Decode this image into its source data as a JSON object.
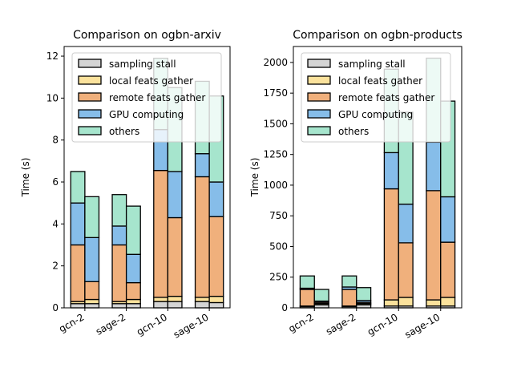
{
  "chart_data": [
    {
      "type": "bar",
      "stacked": true,
      "title": "Comparison on ogbn-arxiv",
      "ylabel": "Time (s)",
      "categories": [
        "gcn-2",
        "sage-2",
        "gcn-10",
        "sage-10"
      ],
      "ylim": [
        0,
        12.46
      ],
      "yticks": [
        0,
        2,
        4,
        6,
        8,
        10,
        12
      ],
      "legend": "upper left",
      "series": [
        {
          "name": "sampling stall",
          "color": "#d4d4d4",
          "values": [
            [
              0.2,
              0.2
            ],
            [
              0.2,
              0.2
            ],
            [
              0.3,
              0.3
            ],
            [
              0.3,
              0.25
            ]
          ]
        },
        {
          "name": "local feats gather",
          "color": "#fbe29c",
          "values": [
            [
              0.1,
              0.2
            ],
            [
              0.1,
              0.2
            ],
            [
              0.2,
              0.25
            ],
            [
              0.2,
              0.3
            ]
          ]
        },
        {
          "name": "remote feats gather",
          "color": "#f0b07c",
          "values": [
            [
              2.7,
              0.85
            ],
            [
              2.7,
              0.8
            ],
            [
              6.05,
              3.75
            ],
            [
              5.75,
              3.8
            ]
          ]
        },
        {
          "name": "GPU computing",
          "color": "#86bde9",
          "values": [
            [
              2.0,
              2.1
            ],
            [
              0.9,
              1.35
            ],
            [
              1.95,
              2.2
            ],
            [
              1.1,
              1.65
            ]
          ]
        },
        {
          "name": "others",
          "color": "#a6e5cd",
          "values": [
            [
              1.5,
              1.95
            ],
            [
              1.5,
              2.3
            ],
            [
              3.4,
              4.0
            ],
            [
              3.45,
              4.1
            ]
          ]
        }
      ]
    },
    {
      "type": "bar",
      "stacked": true,
      "title": "Comparison on ogbn-products",
      "ylabel": "Time (s)",
      "categories": [
        "gcn-2",
        "sage-2",
        "gcn-10",
        "sage-10"
      ],
      "ylim": [
        0,
        2130
      ],
      "yticks": [
        0,
        250,
        500,
        750,
        1000,
        1250,
        1500,
        1750,
        2000
      ],
      "legend": "upper left",
      "series": [
        {
          "name": "sampling stall",
          "color": "#d4d4d4",
          "values": [
            [
              10,
              25
            ],
            [
              10,
              25
            ],
            [
              15,
              15
            ],
            [
              15,
              15
            ]
          ]
        },
        {
          "name": "local feats gather",
          "color": "#fbe29c",
          "values": [
            [
              5,
              10
            ],
            [
              5,
              10
            ],
            [
              50,
              70
            ],
            [
              50,
              70
            ]
          ]
        },
        {
          "name": "remote feats gather",
          "color": "#f0b07c",
          "values": [
            [
              135,
              10
            ],
            [
              135,
              10
            ],
            [
              905,
              445
            ],
            [
              890,
              450
            ]
          ]
        },
        {
          "name": "GPU computing",
          "color": "#86bde9",
          "values": [
            [
              10,
              10
            ],
            [
              20,
              15
            ],
            [
              295,
              315
            ],
            [
              395,
              370
            ]
          ]
        },
        {
          "name": "others",
          "color": "#a6e5cd",
          "values": [
            [
              100,
              95
            ],
            [
              90,
              105
            ],
            [
              680,
              750
            ],
            [
              685,
              780
            ]
          ]
        }
      ]
    }
  ]
}
